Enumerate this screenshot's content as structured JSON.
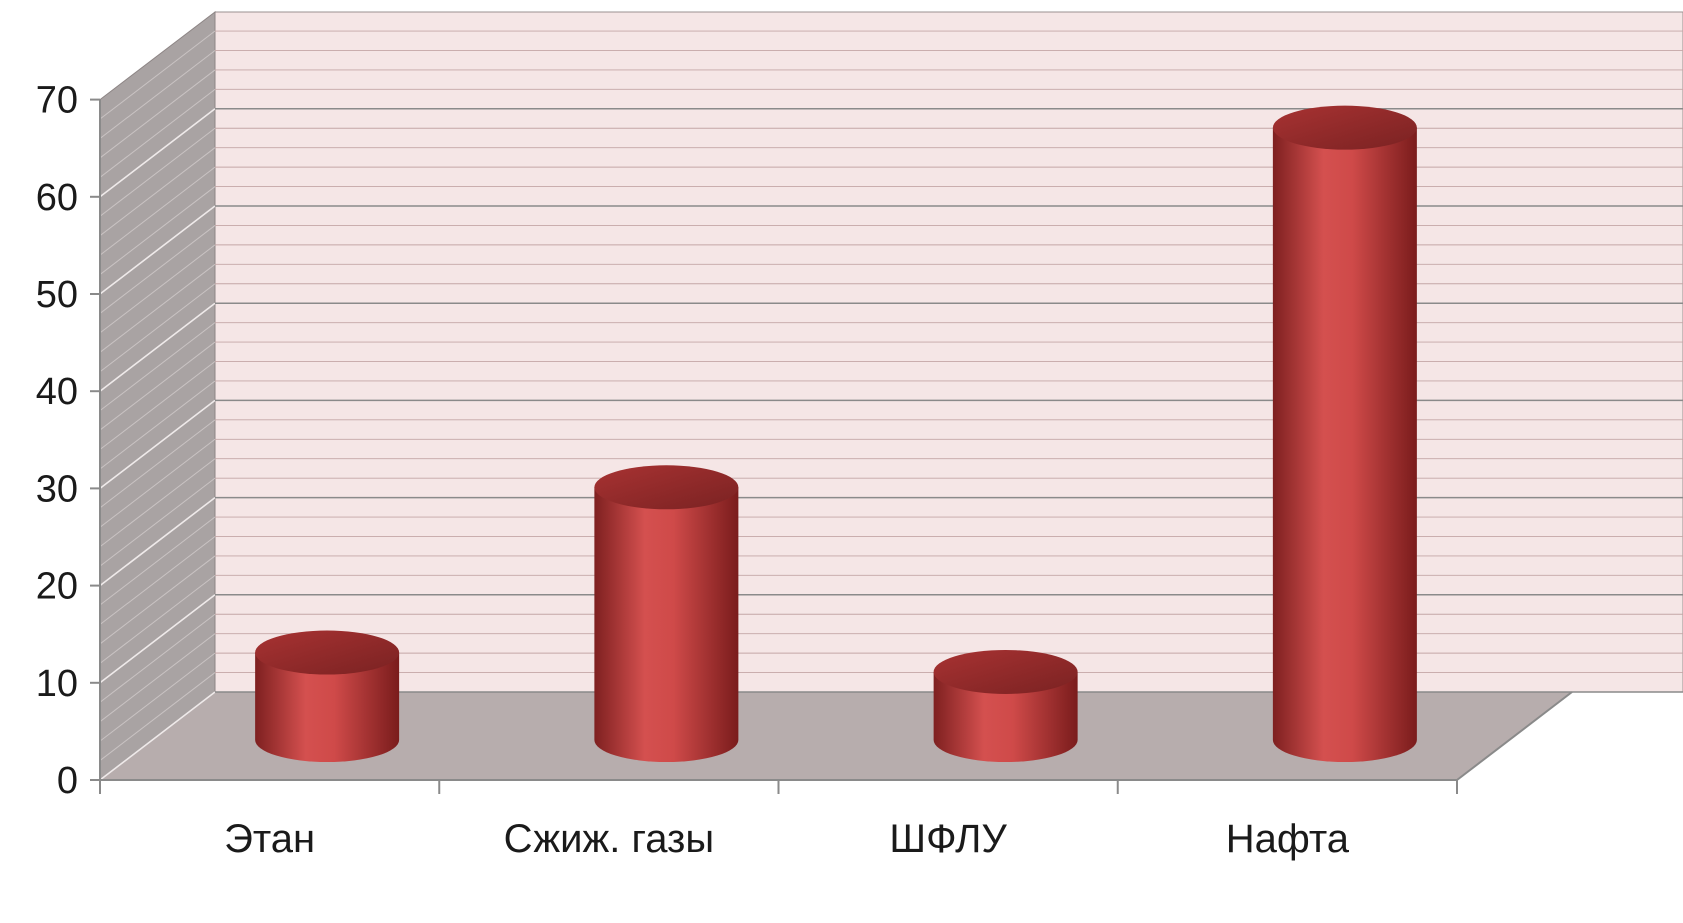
{
  "chart_data": {
    "type": "bar",
    "style": "3d-cylinder",
    "title": "",
    "xlabel": "",
    "ylabel": "",
    "categories": [
      "Этан",
      "Сжиж. газы",
      "ШФЛУ",
      "Нафта"
    ],
    "series": [
      {
        "values": [
          9,
          26,
          7,
          63
        ],
        "color": "#c0393b"
      }
    ],
    "ylim": [
      0,
      70
    ],
    "yticks": [
      0,
      10,
      20,
      30,
      40,
      50,
      60,
      70
    ],
    "yticks_text": [
      "0",
      "10",
      "20",
      "30",
      "40",
      "50",
      "60",
      "70"
    ],
    "minor_gridlines_per_major": 5,
    "grid": true,
    "legend": "none",
    "colors": {
      "back_wall": "#f5e6e6",
      "side_wall": "#a9a3a3",
      "floor": "#b7adad",
      "gridline": "#8a8a8a"
    }
  }
}
